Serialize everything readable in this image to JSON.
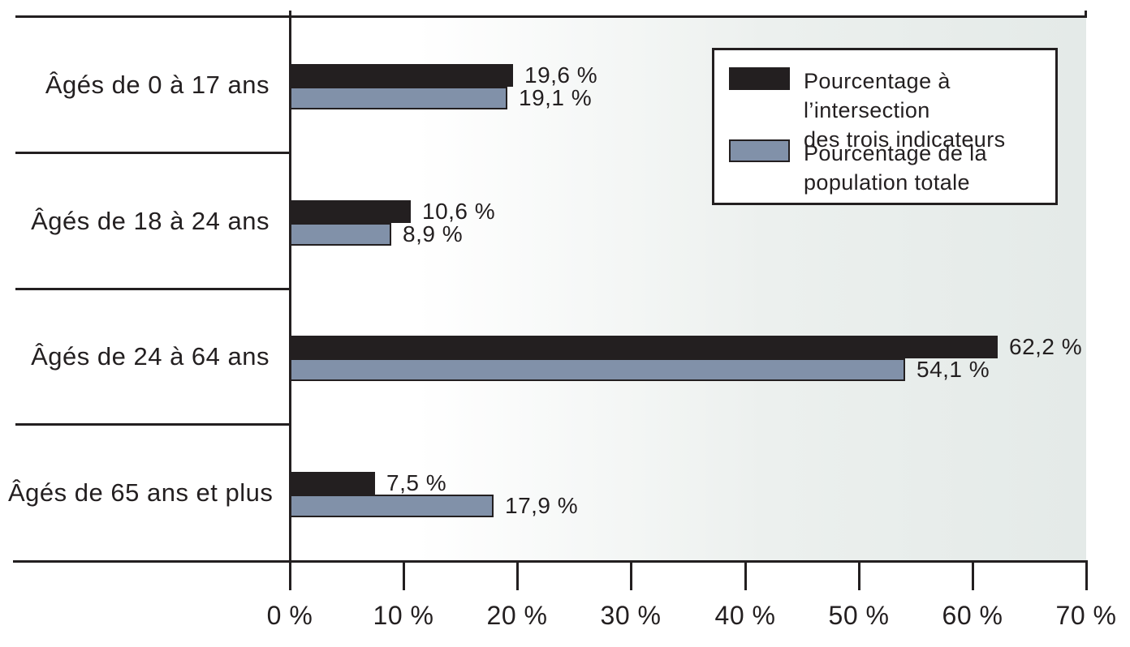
{
  "chart_data": {
    "type": "bar",
    "orientation": "horizontal",
    "categories": [
      "Âgés de 0 à 17 ans",
      "Âgés de 18 à 24 ans",
      "Âgés de 24 à 64 ans",
      "Âgés de 65 ans et plus"
    ],
    "series": [
      {
        "name": "Pourcentage à l’intersection des trois indicateurs",
        "color": "#231f20",
        "values": [
          19.6,
          10.6,
          62.2,
          7.5
        ],
        "value_labels": [
          "19,6 %",
          "10,6 %",
          "62,2 %",
          "7,5 %"
        ]
      },
      {
        "name": "Pourcentage de la population totale",
        "color": "#8191a9",
        "values": [
          19.1,
          8.9,
          54.1,
          17.9
        ],
        "value_labels": [
          "19,1 %",
          "8,9 %",
          "54,1 %",
          "17,9 %"
        ]
      }
    ],
    "x_axis": {
      "min": 0,
      "max": 70,
      "tick_step": 10,
      "tick_labels": [
        "0 %",
        "10 %",
        "20 %",
        "30 %",
        "40 %",
        "50 %",
        "60 %",
        "70 %"
      ]
    },
    "grid": "row-separators-only",
    "legend_position": "top-right"
  },
  "legend": {
    "items": [
      {
        "line1": "Pourcentage à l’intersection",
        "line2": "des trois indicateurs",
        "color": "#231f20"
      },
      {
        "line1": "Pourcentage de la",
        "line2": "population totale",
        "color": "#8191a9"
      }
    ]
  },
  "colors": {
    "ink": "#231f20",
    "series_black": "#231f20",
    "series_blue": "#8191a9",
    "plot_bg_right": "#e4eae8"
  }
}
